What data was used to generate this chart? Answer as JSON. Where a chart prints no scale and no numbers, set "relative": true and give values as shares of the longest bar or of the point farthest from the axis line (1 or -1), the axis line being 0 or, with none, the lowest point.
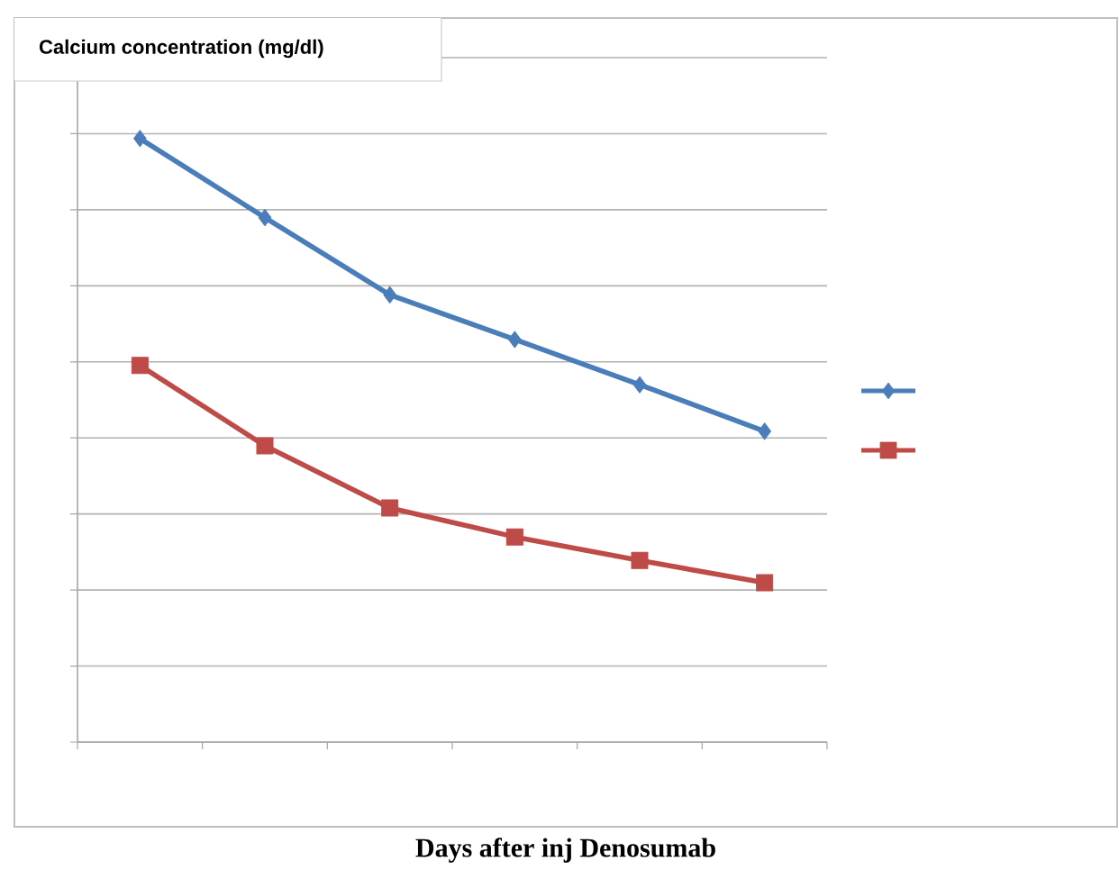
{
  "chart_data": {
    "type": "line",
    "ylabel": "Calcium concentration  (mg/dl)",
    "xlabel": "Days after inj Denosumab",
    "relative": true,
    "grid": "y",
    "categories": [
      null,
      null,
      null,
      null,
      null,
      null
    ],
    "series": [
      {
        "color": "#4a7ebb",
        "marker": "diamond",
        "values": [
          1,
          0.869,
          0.741,
          0.667,
          0.592,
          0.515
        ]
      },
      {
        "color": "#be4b48",
        "marker": "square",
        "values": [
          0.624,
          0.491,
          0.388,
          0.34,
          0.301,
          0.264
        ]
      }
    ]
  }
}
